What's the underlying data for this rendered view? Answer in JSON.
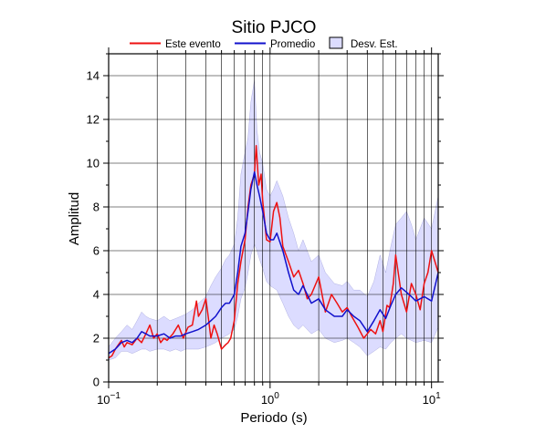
{
  "chart_data": {
    "type": "line",
    "title": "Sitio PJCO",
    "xlabel": "Periodo (s)",
    "ylabel": "Amplitud",
    "x_scale": "log",
    "xlim": [
      0.1,
      11
    ],
    "ylim": [
      0,
      15
    ],
    "x_ticks": [
      {
        "value": 0.1,
        "base": "10",
        "exp": "−1"
      },
      {
        "value": 1,
        "base": "10",
        "exp": "0"
      },
      {
        "value": 10,
        "base": "10",
        "exp": "1"
      }
    ],
    "y_ticks": [
      0,
      2,
      4,
      6,
      8,
      10,
      12,
      14
    ],
    "grid": true,
    "legend_position": "top-center",
    "legend": {
      "event": "Este evento",
      "mean": "Promedio",
      "std": "Desv. Est."
    },
    "colors": {
      "event": "#ee1111",
      "mean": "#1111cc",
      "band_fill": "#dcdcff",
      "band_stroke": "#8888cc"
    },
    "series": [
      {
        "name": "Este evento",
        "x": [
          0.1,
          0.105,
          0.11,
          0.115,
          0.12,
          0.125,
          0.13,
          0.14,
          0.15,
          0.16,
          0.17,
          0.18,
          0.19,
          0.2,
          0.21,
          0.22,
          0.23,
          0.25,
          0.27,
          0.29,
          0.31,
          0.33,
          0.35,
          0.36,
          0.38,
          0.4,
          0.41,
          0.43,
          0.45,
          0.47,
          0.5,
          0.53,
          0.55,
          0.57,
          0.6,
          0.63,
          0.66,
          0.7,
          0.73,
          0.76,
          0.8,
          0.82,
          0.85,
          0.88,
          0.9,
          0.95,
          1.0,
          1.05,
          1.1,
          1.15,
          1.2,
          1.3,
          1.4,
          1.5,
          1.6,
          1.7,
          1.8,
          2.0,
          2.2,
          2.4,
          2.6,
          2.8,
          3.0,
          3.2,
          3.5,
          3.8,
          4.0,
          4.2,
          4.5,
          4.8,
          5.0,
          5.3,
          5.5,
          5.8,
          6.0,
          6.3,
          6.5,
          7.0,
          7.5,
          8.0,
          8.5,
          9.0,
          9.5,
          10.0,
          10.5,
          11.0
        ],
        "y": [
          1.1,
          1.2,
          1.5,
          1.7,
          1.9,
          1.6,
          1.8,
          1.7,
          2.0,
          1.8,
          2.2,
          2.6,
          2.0,
          2.2,
          1.8,
          2.0,
          1.9,
          2.2,
          2.6,
          2.0,
          2.5,
          2.6,
          3.7,
          3.0,
          3.3,
          3.8,
          3.2,
          2.0,
          2.6,
          2.2,
          1.5,
          1.7,
          1.8,
          2.0,
          2.8,
          4.5,
          5.5,
          6.5,
          8.0,
          9.0,
          9.5,
          10.8,
          9.0,
          9.5,
          8.3,
          6.5,
          6.4,
          7.8,
          8.2,
          7.5,
          6.2,
          5.5,
          4.8,
          5.1,
          4.5,
          3.8,
          4.0,
          4.8,
          3.2,
          4.0,
          3.6,
          3.2,
          3.4,
          3.0,
          2.5,
          2.0,
          2.2,
          2.4,
          2.2,
          2.8,
          2.3,
          3.5,
          3.4,
          4.5,
          5.8,
          4.7,
          4.0,
          3.2,
          4.5,
          4.0,
          3.3,
          4.5,
          5.0,
          6.0,
          5.5,
          5.0
        ]
      },
      {
        "name": "Promedio",
        "x": [
          0.1,
          0.11,
          0.12,
          0.13,
          0.14,
          0.15,
          0.16,
          0.17,
          0.18,
          0.2,
          0.22,
          0.24,
          0.26,
          0.28,
          0.3,
          0.33,
          0.36,
          0.4,
          0.43,
          0.46,
          0.5,
          0.53,
          0.56,
          0.6,
          0.63,
          0.66,
          0.7,
          0.73,
          0.76,
          0.8,
          0.83,
          0.86,
          0.9,
          0.95,
          1.0,
          1.05,
          1.1,
          1.2,
          1.3,
          1.4,
          1.5,
          1.6,
          1.8,
          2.0,
          2.2,
          2.5,
          2.8,
          3.0,
          3.3,
          3.6,
          4.0,
          4.4,
          4.8,
          5.2,
          5.6,
          6.0,
          6.5,
          7.0,
          7.5,
          8.0,
          9.0,
          10.0,
          11.0
        ],
        "y": [
          1.3,
          1.5,
          1.8,
          1.9,
          1.8,
          2.0,
          2.3,
          2.2,
          2.1,
          2.1,
          2.2,
          2.0,
          2.1,
          2.1,
          2.2,
          2.3,
          2.4,
          2.6,
          2.8,
          3.0,
          3.4,
          3.6,
          3.6,
          4.0,
          5.0,
          6.2,
          6.8,
          7.8,
          8.8,
          9.6,
          9.0,
          8.5,
          7.8,
          6.8,
          6.5,
          6.5,
          6.8,
          6.0,
          5.0,
          4.2,
          4.0,
          4.4,
          3.6,
          3.8,
          3.3,
          3.0,
          3.0,
          3.3,
          3.0,
          2.8,
          2.3,
          2.8,
          3.3,
          2.9,
          3.5,
          4.0,
          4.3,
          4.1,
          3.9,
          3.7,
          3.9,
          3.7,
          5.0
        ]
      }
    ],
    "std_band": {
      "name": "Desv. Est.",
      "x": [
        0.1,
        0.11,
        0.12,
        0.13,
        0.14,
        0.15,
        0.16,
        0.17,
        0.18,
        0.2,
        0.22,
        0.24,
        0.26,
        0.28,
        0.3,
        0.33,
        0.36,
        0.4,
        0.43,
        0.46,
        0.5,
        0.53,
        0.56,
        0.6,
        0.63,
        0.66,
        0.7,
        0.73,
        0.76,
        0.8,
        0.83,
        0.86,
        0.9,
        0.95,
        1.0,
        1.05,
        1.1,
        1.2,
        1.3,
        1.4,
        1.5,
        1.6,
        1.8,
        2.0,
        2.2,
        2.5,
        2.8,
        3.0,
        3.3,
        3.6,
        4.0,
        4.4,
        4.8,
        5.2,
        5.6,
        6.0,
        6.5,
        7.0,
        7.5,
        8.0,
        9.0,
        10.0,
        11.0
      ],
      "upper": [
        1.6,
        2.0,
        2.3,
        2.6,
        2.4,
        2.8,
        3.2,
        3.0,
        2.9,
        2.8,
        3.0,
        2.8,
        2.9,
        3.0,
        3.1,
        3.3,
        3.6,
        3.9,
        4.4,
        4.8,
        5.2,
        5.6,
        5.8,
        6.3,
        7.5,
        9.5,
        10.5,
        11.2,
        12.8,
        13.8,
        11.5,
        10.5,
        10.0,
        8.8,
        8.5,
        8.8,
        9.2,
        8.5,
        7.5,
        6.8,
        6.0,
        6.5,
        5.5,
        5.8,
        5.0,
        4.5,
        4.4,
        4.6,
        4.2,
        4.2,
        3.9,
        4.6,
        5.8,
        5.0,
        6.2,
        7.2,
        7.5,
        7.8,
        7.2,
        6.5,
        7.5,
        7.0,
        8.5
      ],
      "lower": [
        1.0,
        1.1,
        1.4,
        1.4,
        1.3,
        1.4,
        1.5,
        1.5,
        1.4,
        1.5,
        1.5,
        1.4,
        1.5,
        1.4,
        1.5,
        1.5,
        1.5,
        1.6,
        1.7,
        1.8,
        2.0,
        2.1,
        2.2,
        2.4,
        3.0,
        3.8,
        4.3,
        5.0,
        5.8,
        6.3,
        6.0,
        5.6,
        5.2,
        4.6,
        4.4,
        4.3,
        4.2,
        3.6,
        3.0,
        2.6,
        2.4,
        2.6,
        2.2,
        2.4,
        2.0,
        1.8,
        1.9,
        2.0,
        1.8,
        1.6,
        1.2,
        1.4,
        1.6,
        1.5,
        1.8,
        2.0,
        2.2,
        2.0,
        1.9,
        1.8,
        1.9,
        1.8,
        2.5
      ]
    }
  }
}
